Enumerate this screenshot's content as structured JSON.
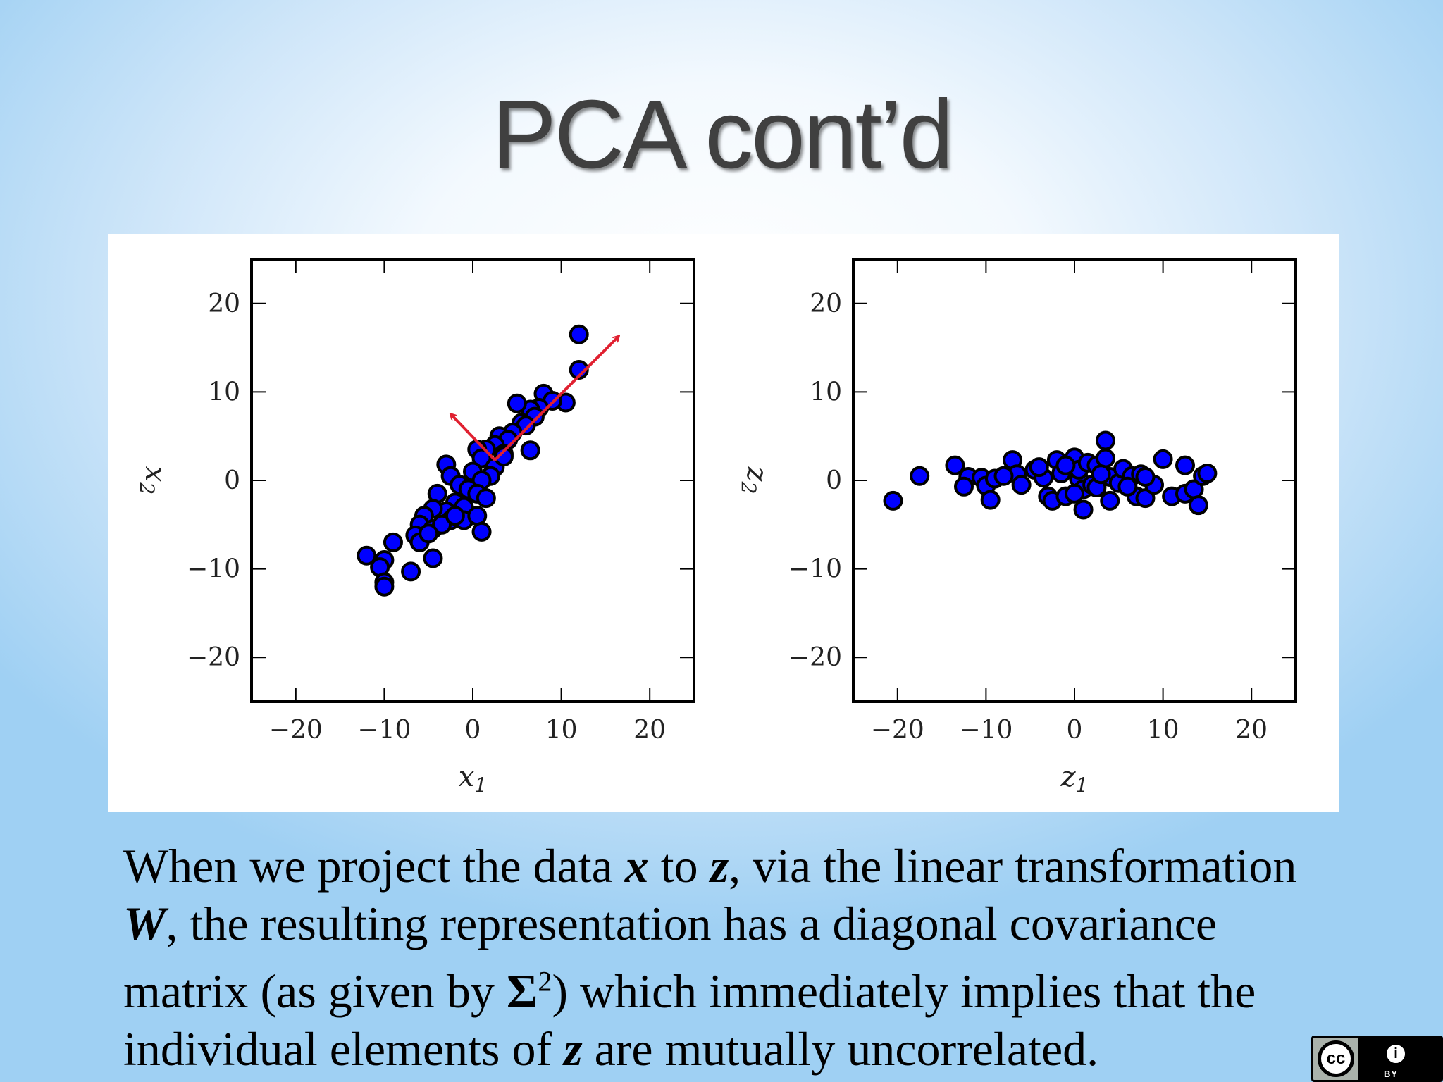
{
  "slide": {
    "title": "PCA cont’d",
    "caption": {
      "line1_a": "When we project the data ",
      "line1_x": "x",
      "line1_b": " to ",
      "line1_z": "z",
      "line1_c": ", via the linear transformation",
      "line2_W": "W",
      "line2_a": ", the resulting representation has a diagonal covariance",
      "line3_a": "matrix (as given by ",
      "line3_sigma": "Σ",
      "line3_sup": "2",
      "line3_b": ") which immediately implies that the",
      "line4_a": "individual elements of ",
      "line4_z": "z",
      "line4_b": " are mutually uncorrelated."
    },
    "license_badge": {
      "cc_label": "cc",
      "by_label": "BY",
      "person_glyph": "i"
    }
  },
  "chart_data": [
    {
      "type": "scatter",
      "title": "",
      "xlabel": "x",
      "xlabel_subscript": "1",
      "ylabel": "x",
      "ylabel_subscript": "2",
      "xlim": [
        -25,
        25
      ],
      "ylim": [
        -25,
        25
      ],
      "xticks": [
        -20,
        -10,
        0,
        10,
        20
      ],
      "yticks": [
        -20,
        -10,
        0,
        10,
        20
      ],
      "tick_labels": [
        "−20",
        "−10",
        "0",
        "10",
        "20"
      ],
      "marker_fill": "#0000ff",
      "marker_edge": "#000000",
      "points": [
        [
          12,
          16.5
        ],
        [
          12,
          12.5
        ],
        [
          10.5,
          8.8
        ],
        [
          8,
          9.8
        ],
        [
          9,
          9
        ],
        [
          7.5,
          8.2
        ],
        [
          6.5,
          8
        ],
        [
          5,
          8.7
        ],
        [
          7,
          7.2
        ],
        [
          5.5,
          6.5
        ],
        [
          6,
          6.2
        ],
        [
          4.5,
          5.4
        ],
        [
          6.5,
          3.4
        ],
        [
          3,
          5
        ],
        [
          4,
          4.6
        ],
        [
          2.5,
          4
        ],
        [
          1.5,
          3.5
        ],
        [
          0.5,
          3.5
        ],
        [
          3.5,
          3
        ],
        [
          1,
          2.5
        ],
        [
          2.5,
          1.5
        ],
        [
          0,
          1
        ],
        [
          3.5,
          2.7
        ],
        [
          2,
          0.5
        ],
        [
          1,
          0
        ],
        [
          -3,
          1.8
        ],
        [
          -2.5,
          0.5
        ],
        [
          -1.5,
          -0.5
        ],
        [
          -0.5,
          -1
        ],
        [
          0.5,
          -1.5
        ],
        [
          1.5,
          -2
        ],
        [
          -4,
          -1.5
        ],
        [
          -2,
          -2.5
        ],
        [
          -1,
          -3
        ],
        [
          -3,
          -3.5
        ],
        [
          -4.5,
          -3.2
        ],
        [
          -2.5,
          -4.5
        ],
        [
          -5.5,
          -4
        ],
        [
          -6,
          -5
        ],
        [
          -4.5,
          -5.5
        ],
        [
          -3.5,
          -5
        ],
        [
          -6.5,
          -6.2
        ],
        [
          -1,
          -4.5
        ],
        [
          0.5,
          -4
        ],
        [
          -6,
          -7
        ],
        [
          1,
          -5.8
        ],
        [
          -4.5,
          -8.8
        ],
        [
          -7,
          -10.3
        ],
        [
          -12,
          -8.5
        ],
        [
          -10,
          -9
        ],
        [
          -9,
          -7
        ],
        [
          -10.5,
          -9.8
        ],
        [
          -10,
          -11.5
        ],
        [
          -10,
          -12
        ],
        [
          -5,
          -6
        ],
        [
          -2,
          -4
        ]
      ],
      "arrows": [
        {
          "from": [
            2.5,
            2.3
          ],
          "to": [
            16.5,
            16.3
          ],
          "color": "#e02030"
        },
        {
          "from": [
            2.5,
            2.3
          ],
          "to": [
            -2.5,
            7.5
          ],
          "color": "#e02030"
        }
      ]
    },
    {
      "type": "scatter",
      "title": "",
      "xlabel": "z",
      "xlabel_subscript": "1",
      "ylabel": "z",
      "ylabel_subscript": "2",
      "xlim": [
        -25,
        25
      ],
      "ylim": [
        -25,
        25
      ],
      "xticks": [
        -20,
        -10,
        0,
        10,
        20
      ],
      "yticks": [
        -20,
        -10,
        0,
        10,
        20
      ],
      "tick_labels": [
        "−20",
        "−10",
        "0",
        "10",
        "20"
      ],
      "marker_fill": "#0000ff",
      "marker_edge": "#000000",
      "points": [
        [
          -20.5,
          -2.3
        ],
        [
          -17.5,
          0.5
        ],
        [
          -13.5,
          1.7
        ],
        [
          -12,
          0.4
        ],
        [
          -12.5,
          -0.7
        ],
        [
          -10.5,
          0.3
        ],
        [
          -10,
          -0.6
        ],
        [
          -9.5,
          -2.2
        ],
        [
          -9,
          0.2
        ],
        [
          -7,
          2.3
        ],
        [
          -6.5,
          0.7
        ],
        [
          -6,
          -0.5
        ],
        [
          -4.5,
          1.2
        ],
        [
          -3.5,
          0.3
        ],
        [
          -3,
          -1.8
        ],
        [
          -2.5,
          -2.3
        ],
        [
          -2,
          2.3
        ],
        [
          -1.5,
          0.8
        ],
        [
          -1,
          -1.8
        ],
        [
          0,
          2.6
        ],
        [
          0.5,
          0.2
        ],
        [
          0.5,
          1.2
        ],
        [
          1,
          -1
        ],
        [
          1,
          -3.3
        ],
        [
          1.5,
          2
        ],
        [
          2,
          -0.5
        ],
        [
          2.5,
          1.7
        ],
        [
          3.5,
          4.5
        ],
        [
          3.5,
          2.5
        ],
        [
          4,
          -2.3
        ],
        [
          4,
          0.4
        ],
        [
          5,
          -0.3
        ],
        [
          5.5,
          1.3
        ],
        [
          6.5,
          0.5
        ],
        [
          7,
          -1.8
        ],
        [
          7.5,
          0.7
        ],
        [
          8,
          -2
        ],
        [
          9,
          -0.5
        ],
        [
          10,
          2.4
        ],
        [
          11,
          -1.8
        ],
        [
          12.5,
          1.7
        ],
        [
          12.5,
          -1.5
        ],
        [
          13.5,
          -1
        ],
        [
          14,
          -2.8
        ],
        [
          14.5,
          0.5
        ],
        [
          15,
          0.8
        ],
        [
          -4,
          1.5
        ],
        [
          2.5,
          -0.8
        ],
        [
          -1,
          1.7
        ],
        [
          6,
          -0.7
        ],
        [
          8,
          0.4
        ],
        [
          -8,
          0.5
        ],
        [
          0,
          -1.5
        ],
        [
          3,
          0.7
        ]
      ],
      "arrows": []
    }
  ]
}
